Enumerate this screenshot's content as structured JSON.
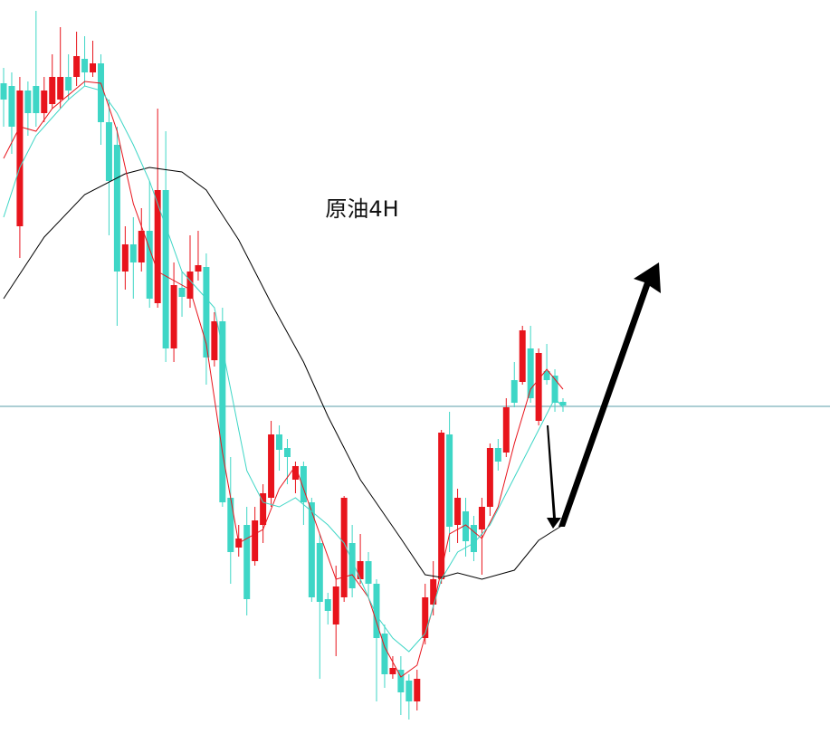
{
  "chart_data": {
    "type": "candlestick",
    "title": "原油4H",
    "up_color": "#e8141c",
    "down_color": "#3ed6c6",
    "xlim": [
      0,
      69
    ],
    "ylim": [
      0,
      811
    ],
    "open": [
      719,
      716,
      561,
      711,
      716,
      686,
      696,
      701,
      726,
      726,
      746,
      731,
      741,
      676,
      651,
      511,
      541,
      521,
      556,
      476,
      601,
      426,
      493,
      481,
      511,
      516,
      413,
      456,
      261,
      206,
      231,
      191,
      231,
      261,
      331,
      316,
      281,
      296,
      256,
      211,
      149,
      121,
      151,
      211,
      171,
      191,
      166,
      111,
      66,
      71,
      59,
      36,
      106,
      143,
      171,
      331,
      231,
      246,
      231,
      226,
      251,
      316,
      311,
      391,
      389,
      426,
      346,
      401,
      396,
      367
    ],
    "high": [
      736,
      731,
      726,
      721,
      799,
      726,
      751,
      781,
      751,
      776,
      771,
      766,
      751,
      701,
      671,
      561,
      571,
      581,
      611,
      691,
      666,
      521,
      511,
      551,
      556,
      531,
      466,
      471,
      306,
      231,
      251,
      251,
      276,
      346,
      341,
      326,
      301,
      301,
      261,
      221,
      156,
      186,
      263,
      231,
      221,
      201,
      171,
      121,
      86,
      86,
      66,
      71,
      166,
      191,
      336,
      356,
      271,
      261,
      241,
      261,
      321,
      326,
      371,
      411,
      451,
      451,
      426,
      431,
      403,
      371
    ],
    "low": [
      671,
      641,
      526,
      661,
      671,
      676,
      691,
      691,
      701,
      716,
      716,
      726,
      651,
      551,
      451,
      491,
      481,
      511,
      471,
      471,
      411,
      411,
      461,
      471,
      501,
      386,
      406,
      251,
      166,
      196,
      131,
      186,
      211,
      251,
      291,
      276,
      266,
      231,
      146,
      61,
      121,
      86,
      146,
      151,
      166,
      151,
      36,
      51,
      61,
      21,
      16,
      26,
      99,
      131,
      166,
      201,
      211,
      196,
      191,
      176,
      241,
      291,
      306,
      361,
      386,
      366,
      341,
      386,
      356,
      356
    ],
    "close": [
      701,
      671,
      711,
      686,
      686,
      711,
      726,
      726,
      711,
      749,
      731,
      741,
      676,
      611,
      511,
      541,
      521,
      556,
      481,
      601,
      426,
      496,
      483,
      511,
      518,
      416,
      456,
      256,
      201,
      216,
      149,
      236,
      266,
      331,
      314,
      306,
      296,
      256,
      151,
      146,
      136,
      163,
      261,
      161,
      191,
      166,
      106,
      66,
      73,
      46,
      36,
      61,
      151,
      171,
      333,
      229,
      261,
      213,
      201,
      251,
      316,
      301,
      361,
      366,
      446,
      371,
      421,
      391,
      366,
      363
    ],
    "lines": [
      {
        "color": "#000000",
        "x": [
          0,
          5,
          10,
          15,
          18,
          22,
          25,
          29,
          33,
          37,
          40,
          44,
          49,
          52,
          54,
          56,
          59,
          63,
          66,
          69
        ],
        "values": [
          481,
          549,
          596,
          619,
          626,
          621,
          601,
          546,
          476,
          411,
          351,
          281,
          216,
          176,
          173,
          178,
          171,
          181,
          214,
          231
        ]
      },
      {
        "color": "#e8141c",
        "x": [
          0,
          2,
          4,
          6,
          10,
          12,
          14,
          16,
          19,
          21,
          23,
          25,
          27,
          29,
          32,
          34,
          36,
          38,
          41,
          43,
          45,
          47,
          49,
          51,
          53,
          55,
          57,
          59,
          61,
          63,
          65,
          67,
          69
        ],
        "values": [
          636,
          671,
          666,
          691,
          721,
          719,
          666,
          586,
          511,
          501,
          491,
          431,
          311,
          211,
          226,
          271,
          296,
          246,
          171,
          176,
          151,
          96,
          63,
          76,
          141,
          221,
          231,
          216,
          251,
          321,
          381,
          403,
          381
        ]
      },
      {
        "color": "#3ed6c6",
        "x": [
          0,
          2,
          4,
          6,
          8,
          10,
          12,
          14,
          16,
          18,
          20,
          22,
          24,
          26,
          28,
          30,
          32,
          34,
          36,
          38,
          40,
          42,
          44,
          46,
          48,
          50,
          52,
          54,
          56,
          58,
          60,
          62,
          64,
          66,
          68,
          69
        ],
        "values": [
          571,
          626,
          661,
          681,
          701,
          716,
          711,
          686,
          651,
          611,
          561,
          511,
          491,
          471,
          381,
          291,
          256,
          251,
          261,
          246,
          231,
          211,
          171,
          131,
          106,
          91,
          111,
          171,
          201,
          211,
          231,
          266,
          301,
          336,
          371,
          361
        ]
      }
    ],
    "hline": 362,
    "hline_color": "#5a9ea8"
  }
}
